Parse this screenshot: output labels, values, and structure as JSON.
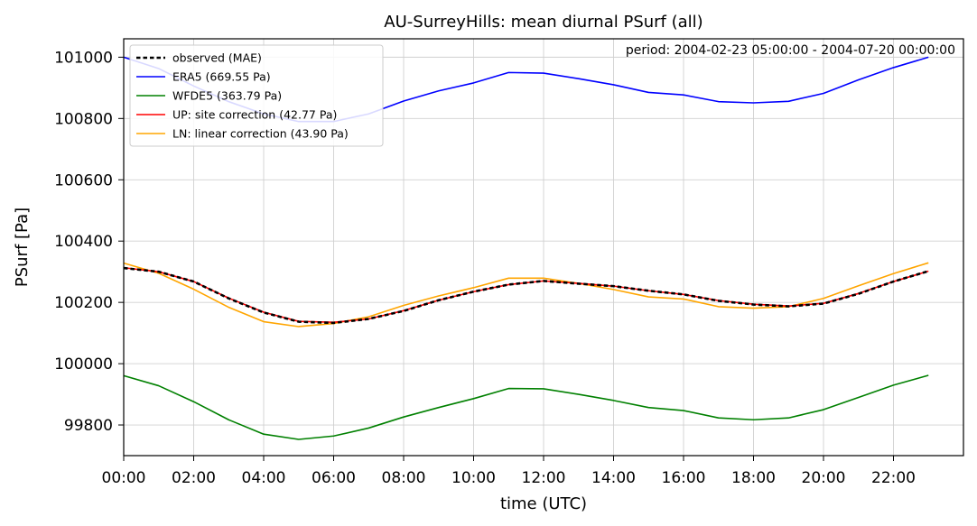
{
  "chart_data": {
    "type": "line",
    "title": "AU-SurreyHills: mean diurnal PSurf (all)",
    "xlabel": "time (UTC)",
    "ylabel": "PSurf [Pa]",
    "annotation": "period: 2004-02-23 05:00:00 - 2004-07-20 00:00:00",
    "x": [
      "00:00",
      "01:00",
      "02:00",
      "03:00",
      "04:00",
      "05:00",
      "06:00",
      "07:00",
      "08:00",
      "09:00",
      "10:00",
      "11:00",
      "12:00",
      "13:00",
      "14:00",
      "15:00",
      "16:00",
      "17:00",
      "18:00",
      "19:00",
      "20:00",
      "21:00",
      "22:00",
      "23:00"
    ],
    "xlim": [
      0,
      24
    ],
    "ylim": [
      99700,
      101060
    ],
    "xticks": [
      "00:00",
      "02:00",
      "04:00",
      "06:00",
      "08:00",
      "10:00",
      "12:00",
      "14:00",
      "16:00",
      "18:00",
      "20:00",
      "22:00"
    ],
    "yticks": [
      99800,
      100000,
      100200,
      100400,
      100600,
      100800,
      101000
    ],
    "grid": true,
    "legend_position": "upper-left",
    "series": [
      {
        "name": "observed (MAE)",
        "color": "#000000",
        "style": "dashed",
        "values": [
          100312,
          100300,
          100268,
          100213,
          100167,
          100137,
          100133,
          100146,
          100172,
          100207,
          100235,
          100258,
          100270,
          100261,
          100253,
          100238,
          100226,
          100205,
          100193,
          100187,
          100196,
          100228,
          100268,
          100302
        ]
      },
      {
        "name": "ERA5 (669.55 Pa)",
        "color": "#0000ff",
        "style": "solid",
        "values": [
          101000,
          100963,
          100906,
          100855,
          100815,
          100790,
          100790,
          100815,
          100857,
          100890,
          100916,
          100950,
          100948,
          100930,
          100910,
          100885,
          100877,
          100855,
          100851,
          100856,
          100882,
          100926,
          100966,
          101000
        ]
      },
      {
        "name": "WFDE5 (363.79 Pa)",
        "color": "#008000",
        "style": "solid",
        "values": [
          99961,
          99928,
          99876,
          99817,
          99770,
          99753,
          99764,
          99790,
          99826,
          99857,
          99886,
          99919,
          99918,
          99900,
          99880,
          99857,
          99847,
          99823,
          99817,
          99823,
          99850,
          99890,
          99930,
          99962
        ]
      },
      {
        "name": "UP: site correction (42.77 Pa)",
        "color": "#ff0000",
        "style": "solid",
        "values": [
          100313,
          100300,
          100268,
          100214,
          100168,
          100138,
          100135,
          100146,
          100173,
          100207,
          100235,
          100258,
          100270,
          100262,
          100253,
          100238,
          100226,
          100206,
          100194,
          100188,
          100197,
          100229,
          100268,
          100302
        ]
      },
      {
        "name": "LN: linear correction (43.90 Pa)",
        "color": "#ffa500",
        "style": "solid",
        "values": [
          100328,
          100295,
          100243,
          100184,
          100137,
          100121,
          100131,
          100153,
          100190,
          100221,
          100248,
          100279,
          100279,
          100262,
          100242,
          100218,
          100211,
          100186,
          100181,
          100186,
          100213,
          100254,
          100294,
          100329
        ]
      }
    ]
  }
}
